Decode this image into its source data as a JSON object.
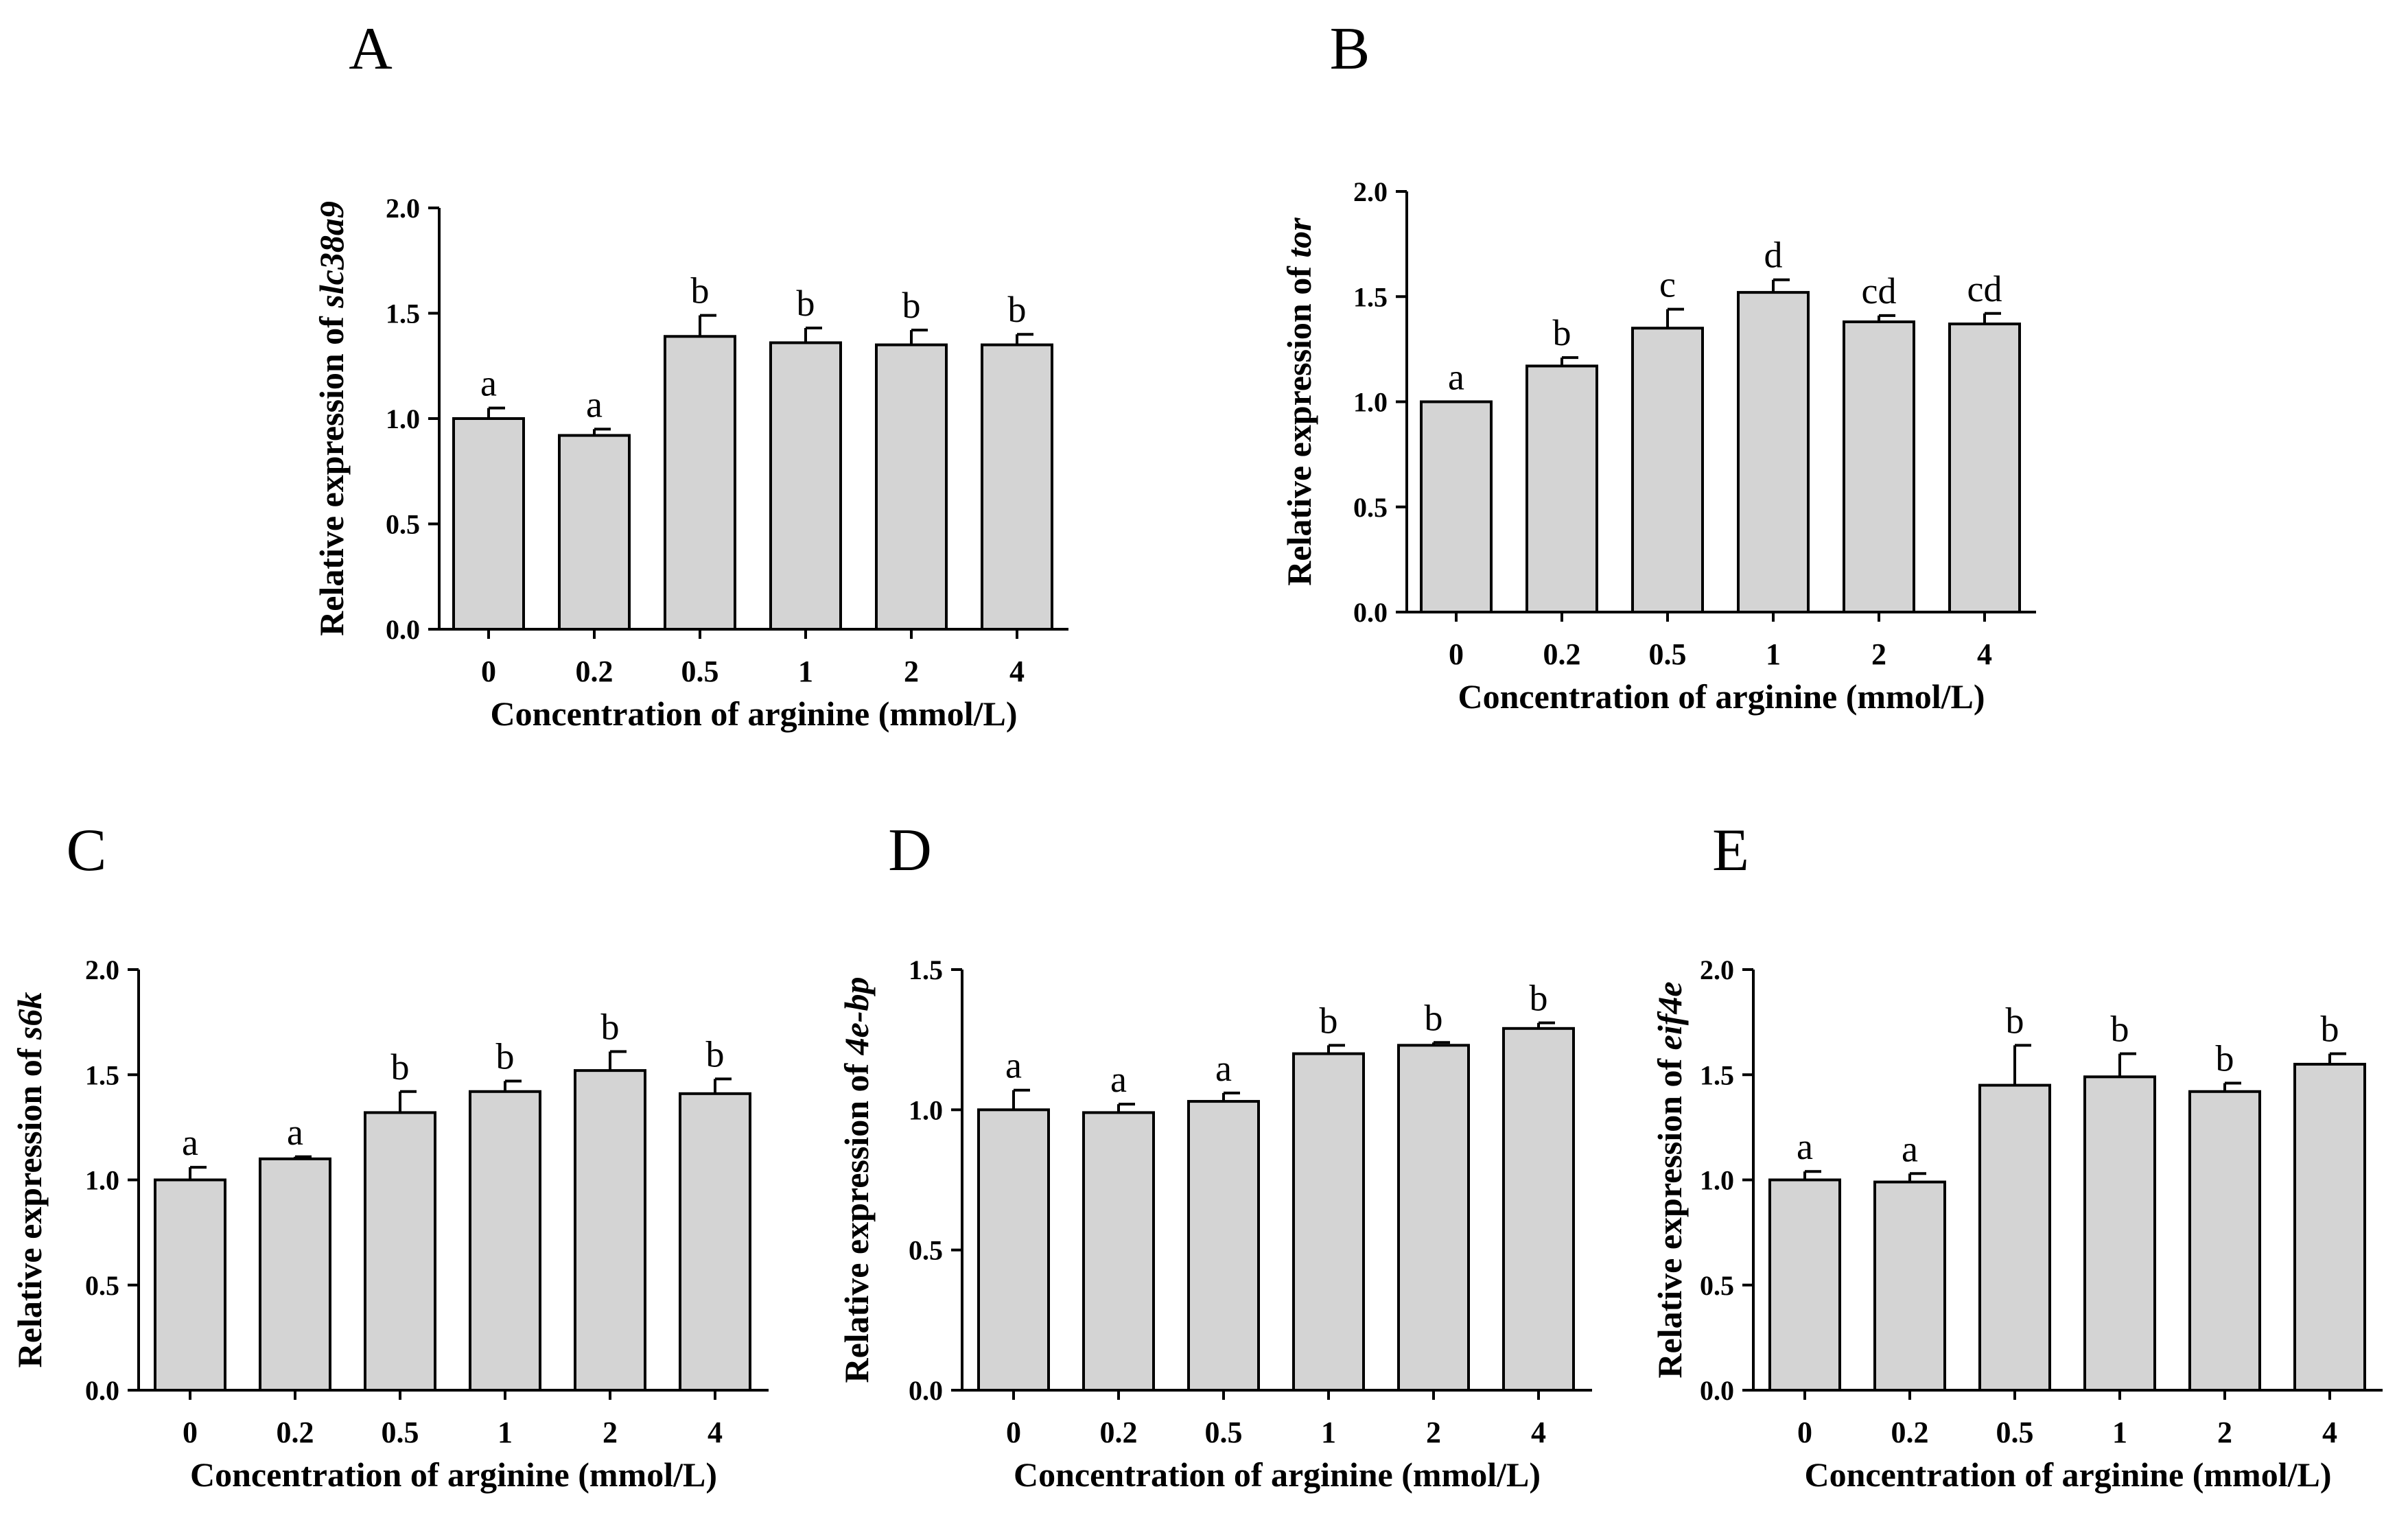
{
  "chart_data": [
    {
      "type": "bar",
      "panel_label": "A",
      "categories": [
        "0",
        "0.2",
        "0.5",
        "1",
        "2",
        "4"
      ],
      "values": [
        1.0,
        0.92,
        1.39,
        1.36,
        1.35,
        1.35
      ],
      "errors": [
        0.05,
        0.03,
        0.1,
        0.07,
        0.07,
        0.05
      ],
      "significance": [
        "a",
        "a",
        "b",
        "b",
        "b",
        "b"
      ],
      "ylabel_prefix": "Relative expression of ",
      "ylabel_gene": "slc38a9",
      "xlabel": "Concentration of arginine (mmol/L)",
      "ylim": [
        0,
        2.0
      ],
      "yticks": [
        "0.0",
        "0.5",
        "1.0",
        "1.5",
        "2.0"
      ],
      "ytick_values": [
        0,
        0.5,
        1.0,
        1.5,
        2.0
      ]
    },
    {
      "type": "bar",
      "panel_label": "B",
      "categories": [
        "0",
        "0.2",
        "0.5",
        "1",
        "2",
        "4"
      ],
      "values": [
        1.0,
        1.17,
        1.35,
        1.52,
        1.38,
        1.37
      ],
      "errors": [
        0.0,
        0.04,
        0.09,
        0.06,
        0.03,
        0.05
      ],
      "significance": [
        "a",
        "b",
        "c",
        "d",
        "cd",
        "cd"
      ],
      "ylabel_prefix": "Relative expression of ",
      "ylabel_gene": "tor",
      "xlabel": "Concentration of arginine (mmol/L)",
      "ylim": [
        0,
        2.0
      ],
      "yticks": [
        "0.0",
        "0.5",
        "1.0",
        "1.5",
        "2.0"
      ],
      "ytick_values": [
        0,
        0.5,
        1.0,
        1.5,
        2.0
      ]
    },
    {
      "type": "bar",
      "panel_label": "C",
      "categories": [
        "0",
        "0.2",
        "0.5",
        "1",
        "2",
        "4"
      ],
      "values": [
        1.0,
        1.1,
        1.32,
        1.42,
        1.52,
        1.41
      ],
      "errors": [
        0.06,
        0.01,
        0.1,
        0.05,
        0.09,
        0.07
      ],
      "significance": [
        "a",
        "a",
        "b",
        "b",
        "b",
        "b"
      ],
      "ylabel_prefix": "Relative expression of ",
      "ylabel_gene": "s6k",
      "xlabel": "Concentration of arginine (mmol/L)",
      "ylim": [
        0,
        2.0
      ],
      "yticks": [
        "0.0",
        "0.5",
        "1.0",
        "1.5",
        "2.0"
      ],
      "ytick_values": [
        0,
        0.5,
        1.0,
        1.5,
        2.0
      ]
    },
    {
      "type": "bar",
      "panel_label": "D",
      "categories": [
        "0",
        "0.2",
        "0.5",
        "1",
        "2",
        "4"
      ],
      "values": [
        1.0,
        0.99,
        1.03,
        1.2,
        1.23,
        1.29
      ],
      "errors": [
        0.07,
        0.03,
        0.03,
        0.03,
        0.01,
        0.02
      ],
      "significance": [
        "a",
        "a",
        "a",
        "b",
        "b",
        "b"
      ],
      "ylabel_prefix": "Relative expression of ",
      "ylabel_gene": "4e-bp",
      "xlabel": "Concentration of arginine (mmol/L)",
      "ylim": [
        0,
        1.5
      ],
      "yticks": [
        "0.0",
        "0.5",
        "1.0",
        "1.5"
      ],
      "ytick_values": [
        0,
        0.5,
        1.0,
        1.5
      ]
    },
    {
      "type": "bar",
      "panel_label": "E",
      "categories": [
        "0",
        "0.2",
        "0.5",
        "1",
        "2",
        "4"
      ],
      "values": [
        1.0,
        0.99,
        1.45,
        1.49,
        1.42,
        1.55
      ],
      "errors": [
        0.04,
        0.04,
        0.19,
        0.11,
        0.04,
        0.05
      ],
      "significance": [
        "a",
        "a",
        "b",
        "b",
        "b",
        "b"
      ],
      "ylabel_prefix": "Relative expression of ",
      "ylabel_gene": "eif4e",
      "xlabel": "Concentration of arginine (mmol/L)",
      "ylim": [
        0,
        2.0
      ],
      "yticks": [
        "0.0",
        "0.5",
        "1.0",
        "1.5",
        "2.0"
      ],
      "ytick_values": [
        0,
        0.5,
        1.0,
        1.5,
        2.0
      ]
    }
  ]
}
